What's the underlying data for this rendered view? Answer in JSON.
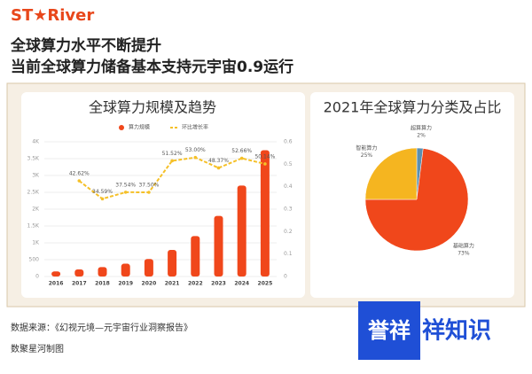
{
  "logo": "ST★River",
  "header": {
    "title_line1": "全球算力水平不断提升",
    "title_line2": "当前全球算力储备基本支持元宇宙0.9运行"
  },
  "source": "数据来源：《幻视元境—元宇宙行业洞察报告》",
  "credit": "数聚星河制图",
  "watermark": {
    "left": "誉祥",
    "right": "祥知识"
  },
  "chart_data": [
    {
      "type": "bar",
      "title": "全球算力规模及趋势",
      "categories": [
        "2016",
        "2017",
        "2018",
        "2019",
        "2020",
        "2021",
        "2022",
        "2023",
        "2024",
        "2025"
      ],
      "series": [
        {
          "name": "算力规模",
          "type": "bar",
          "color": "#f0471b",
          "values": [
            150,
            210,
            280,
            380,
            520,
            790,
            1200,
            1800,
            2700,
            3750
          ]
        },
        {
          "name": "环比增长率",
          "type": "line",
          "axis": "y2",
          "color": "#f5c028",
          "values": [
            null,
            0.4262,
            0.3459,
            0.3754,
            0.375,
            0.5152,
            0.53,
            0.4837,
            0.5266,
            0.5014
          ],
          "value_labels": [
            null,
            "42.62%",
            "34.59%",
            "37.54%",
            "37.50%",
            "51.52%",
            "53.00%",
            "48.37%",
            "52.66%",
            "50.14%"
          ]
        }
      ],
      "ylim": [
        0,
        4000
      ],
      "yticks": [
        0,
        500,
        {
          "value": 1000,
          "label": "1K"
        },
        {
          "value": 1500,
          "label": "1.5K"
        },
        {
          "value": 2000,
          "label": "2K"
        },
        {
          "value": 2500,
          "label": "2.5K"
        },
        {
          "value": 3000,
          "label": "3K"
        },
        {
          "value": 3500,
          "label": "3.5K"
        },
        {
          "value": 4000,
          "label": "4K"
        }
      ],
      "y2lim": [
        0,
        0.6
      ],
      "y2ticks": [
        0,
        0.1,
        0.2,
        0.3,
        0.4,
        0.5,
        0.6
      ],
      "grid": true
    },
    {
      "type": "pie",
      "title": "2021年全球算力分类及占比",
      "categories": [
        "超算算力",
        "基础算力",
        "智能算力"
      ],
      "values": [
        2,
        73,
        25
      ],
      "value_labels": [
        "2%",
        "73%",
        "25%"
      ],
      "colors": [
        "#5b8fb0",
        "#f0471b",
        "#f5b520"
      ]
    }
  ]
}
